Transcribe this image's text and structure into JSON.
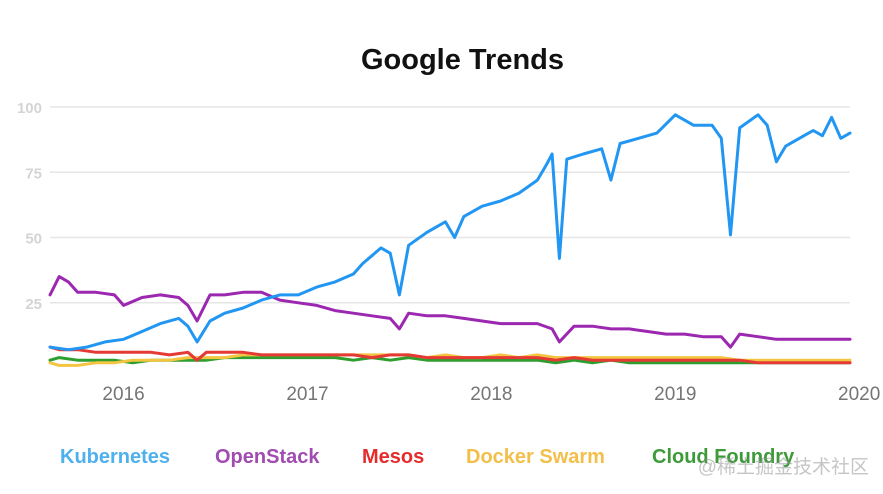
{
  "chart_data": {
    "type": "line",
    "title": "Google Trends",
    "xlabel": "",
    "ylabel": "",
    "ylim": [
      0,
      100
    ],
    "yticks": [
      25,
      50,
      75,
      100
    ],
    "xticks": [
      "2016",
      "2017",
      "2018",
      "2019",
      "2020"
    ],
    "x_range": [
      2015.85,
      2020.2
    ],
    "grid": true,
    "legend_position": "bottom",
    "series": [
      {
        "name": "Kubernetes",
        "color": "#2196F3",
        "legend_color": "#4FB0EE",
        "points": [
          [
            2015.85,
            8
          ],
          [
            2015.95,
            7
          ],
          [
            2016.05,
            8
          ],
          [
            2016.15,
            10
          ],
          [
            2016.25,
            11
          ],
          [
            2016.35,
            14
          ],
          [
            2016.45,
            17
          ],
          [
            2016.55,
            19
          ],
          [
            2016.6,
            16
          ],
          [
            2016.65,
            10
          ],
          [
            2016.72,
            18
          ],
          [
            2016.8,
            21
          ],
          [
            2016.9,
            23
          ],
          [
            2017.0,
            26
          ],
          [
            2017.1,
            28
          ],
          [
            2017.2,
            28
          ],
          [
            2017.3,
            31
          ],
          [
            2017.4,
            33
          ],
          [
            2017.5,
            36
          ],
          [
            2017.55,
            40
          ],
          [
            2017.6,
            43
          ],
          [
            2017.65,
            46
          ],
          [
            2017.7,
            44
          ],
          [
            2017.75,
            28
          ],
          [
            2017.8,
            47
          ],
          [
            2017.9,
            52
          ],
          [
            2018.0,
            56
          ],
          [
            2018.05,
            50
          ],
          [
            2018.1,
            58
          ],
          [
            2018.2,
            62
          ],
          [
            2018.3,
            64
          ],
          [
            2018.4,
            67
          ],
          [
            2018.5,
            72
          ],
          [
            2018.55,
            78
          ],
          [
            2018.58,
            82
          ],
          [
            2018.62,
            42
          ],
          [
            2018.66,
            80
          ],
          [
            2018.75,
            82
          ],
          [
            2018.85,
            84
          ],
          [
            2018.9,
            72
          ],
          [
            2018.95,
            86
          ],
          [
            2019.05,
            88
          ],
          [
            2019.15,
            90
          ],
          [
            2019.25,
            97
          ],
          [
            2019.35,
            93
          ],
          [
            2019.45,
            93
          ],
          [
            2019.5,
            88
          ],
          [
            2019.55,
            51
          ],
          [
            2019.6,
            92
          ],
          [
            2019.7,
            97
          ],
          [
            2019.75,
            93
          ],
          [
            2019.8,
            79
          ],
          [
            2019.85,
            85
          ],
          [
            2019.95,
            89
          ],
          [
            2020.0,
            91
          ],
          [
            2020.05,
            89
          ],
          [
            2020.1,
            96
          ],
          [
            2020.15,
            88
          ],
          [
            2020.2,
            90
          ]
        ]
      },
      {
        "name": "OpenStack",
        "color": "#9C27B0",
        "legend_color": "#A04CB0",
        "points": [
          [
            2015.85,
            28
          ],
          [
            2015.9,
            35
          ],
          [
            2015.95,
            33
          ],
          [
            2016.0,
            29
          ],
          [
            2016.1,
            29
          ],
          [
            2016.2,
            28
          ],
          [
            2016.25,
            24
          ],
          [
            2016.35,
            27
          ],
          [
            2016.45,
            28
          ],
          [
            2016.55,
            27
          ],
          [
            2016.6,
            24
          ],
          [
            2016.65,
            18
          ],
          [
            2016.72,
            28
          ],
          [
            2016.8,
            28
          ],
          [
            2016.9,
            29
          ],
          [
            2017.0,
            29
          ],
          [
            2017.1,
            26
          ],
          [
            2017.2,
            25
          ],
          [
            2017.3,
            24
          ],
          [
            2017.4,
            22
          ],
          [
            2017.5,
            21
          ],
          [
            2017.6,
            20
          ],
          [
            2017.7,
            19
          ],
          [
            2017.75,
            15
          ],
          [
            2017.8,
            21
          ],
          [
            2017.9,
            20
          ],
          [
            2018.0,
            20
          ],
          [
            2018.1,
            19
          ],
          [
            2018.2,
            18
          ],
          [
            2018.3,
            17
          ],
          [
            2018.4,
            17
          ],
          [
            2018.5,
            17
          ],
          [
            2018.58,
            15
          ],
          [
            2018.62,
            10
          ],
          [
            2018.7,
            16
          ],
          [
            2018.8,
            16
          ],
          [
            2018.9,
            15
          ],
          [
            2019.0,
            15
          ],
          [
            2019.1,
            14
          ],
          [
            2019.2,
            13
          ],
          [
            2019.3,
            13
          ],
          [
            2019.4,
            12
          ],
          [
            2019.5,
            12
          ],
          [
            2019.55,
            8
          ],
          [
            2019.6,
            13
          ],
          [
            2019.7,
            12
          ],
          [
            2019.8,
            11
          ],
          [
            2019.9,
            11
          ],
          [
            2020.0,
            11
          ],
          [
            2020.1,
            11
          ],
          [
            2020.15,
            11
          ],
          [
            2020.2,
            11
          ]
        ]
      },
      {
        "name": "Mesos",
        "color": "#E53935",
        "legend_color": "#E52B2B",
        "points": [
          [
            2015.85,
            8
          ],
          [
            2015.9,
            7
          ],
          [
            2016.0,
            7
          ],
          [
            2016.1,
            6
          ],
          [
            2016.2,
            6
          ],
          [
            2016.3,
            6
          ],
          [
            2016.4,
            6
          ],
          [
            2016.5,
            5
          ],
          [
            2016.6,
            6
          ],
          [
            2016.65,
            3
          ],
          [
            2016.7,
            6
          ],
          [
            2016.8,
            6
          ],
          [
            2016.9,
            6
          ],
          [
            2017.0,
            5
          ],
          [
            2017.1,
            5
          ],
          [
            2017.2,
            5
          ],
          [
            2017.3,
            5
          ],
          [
            2017.4,
            5
          ],
          [
            2017.5,
            5
          ],
          [
            2017.6,
            4
          ],
          [
            2017.7,
            5
          ],
          [
            2017.8,
            5
          ],
          [
            2017.9,
            4
          ],
          [
            2018.0,
            4
          ],
          [
            2018.1,
            4
          ],
          [
            2018.2,
            4
          ],
          [
            2018.3,
            4
          ],
          [
            2018.4,
            4
          ],
          [
            2018.5,
            4
          ],
          [
            2018.6,
            3
          ],
          [
            2018.7,
            4
          ],
          [
            2018.8,
            3
          ],
          [
            2018.9,
            3
          ],
          [
            2019.0,
            3
          ],
          [
            2019.1,
            3
          ],
          [
            2019.2,
            3
          ],
          [
            2019.3,
            3
          ],
          [
            2019.4,
            3
          ],
          [
            2019.5,
            3
          ],
          [
            2019.6,
            3
          ],
          [
            2019.7,
            2
          ],
          [
            2019.8,
            2
          ],
          [
            2019.9,
            2
          ],
          [
            2020.0,
            2
          ],
          [
            2020.1,
            2
          ],
          [
            2020.2,
            2
          ]
        ]
      },
      {
        "name": "Docker Swarm",
        "color": "#F4C542",
        "legend_color": "#F2BF4B",
        "points": [
          [
            2015.85,
            2
          ],
          [
            2015.9,
            1
          ],
          [
            2016.0,
            1
          ],
          [
            2016.1,
            2
          ],
          [
            2016.2,
            2
          ],
          [
            2016.3,
            3
          ],
          [
            2016.4,
            3
          ],
          [
            2016.5,
            3
          ],
          [
            2016.6,
            4
          ],
          [
            2016.7,
            4
          ],
          [
            2016.8,
            4
          ],
          [
            2016.9,
            5
          ],
          [
            2017.0,
            5
          ],
          [
            2017.1,
            5
          ],
          [
            2017.2,
            5
          ],
          [
            2017.3,
            5
          ],
          [
            2017.4,
            5
          ],
          [
            2017.5,
            5
          ],
          [
            2017.6,
            5
          ],
          [
            2017.7,
            5
          ],
          [
            2017.8,
            5
          ],
          [
            2017.9,
            4
          ],
          [
            2018.0,
            5
          ],
          [
            2018.1,
            4
          ],
          [
            2018.2,
            4
          ],
          [
            2018.3,
            5
          ],
          [
            2018.4,
            4
          ],
          [
            2018.5,
            5
          ],
          [
            2018.6,
            4
          ],
          [
            2018.7,
            4
          ],
          [
            2018.8,
            4
          ],
          [
            2018.9,
            4
          ],
          [
            2019.0,
            4
          ],
          [
            2019.1,
            4
          ],
          [
            2019.2,
            4
          ],
          [
            2019.3,
            4
          ],
          [
            2019.4,
            4
          ],
          [
            2019.5,
            4
          ],
          [
            2019.6,
            3
          ],
          [
            2019.7,
            3
          ],
          [
            2019.8,
            3
          ],
          [
            2019.9,
            3
          ],
          [
            2020.0,
            3
          ],
          [
            2020.1,
            3
          ],
          [
            2020.2,
            3
          ]
        ]
      },
      {
        "name": "Cloud Foundry",
        "color": "#2E9E2E",
        "legend_color": "#3D9A39",
        "points": [
          [
            2015.85,
            3
          ],
          [
            2015.9,
            4
          ],
          [
            2016.0,
            3
          ],
          [
            2016.1,
            3
          ],
          [
            2016.2,
            3
          ],
          [
            2016.3,
            2
          ],
          [
            2016.4,
            3
          ],
          [
            2016.5,
            3
          ],
          [
            2016.6,
            3
          ],
          [
            2016.7,
            3
          ],
          [
            2016.8,
            4
          ],
          [
            2016.9,
            4
          ],
          [
            2017.0,
            4
          ],
          [
            2017.1,
            4
          ],
          [
            2017.2,
            4
          ],
          [
            2017.3,
            4
          ],
          [
            2017.4,
            4
          ],
          [
            2017.5,
            3
          ],
          [
            2017.6,
            4
          ],
          [
            2017.7,
            3
          ],
          [
            2017.8,
            4
          ],
          [
            2017.9,
            3
          ],
          [
            2018.0,
            3
          ],
          [
            2018.1,
            3
          ],
          [
            2018.2,
            3
          ],
          [
            2018.3,
            3
          ],
          [
            2018.4,
            3
          ],
          [
            2018.5,
            3
          ],
          [
            2018.6,
            2
          ],
          [
            2018.7,
            3
          ],
          [
            2018.8,
            2
          ],
          [
            2018.9,
            3
          ],
          [
            2019.0,
            2
          ],
          [
            2019.1,
            2
          ],
          [
            2019.2,
            2
          ],
          [
            2019.3,
            2
          ],
          [
            2019.4,
            2
          ],
          [
            2019.5,
            2
          ],
          [
            2019.6,
            2
          ],
          [
            2019.7,
            2
          ],
          [
            2019.8,
            2
          ],
          [
            2019.9,
            2
          ],
          [
            2020.0,
            2
          ],
          [
            2020.1,
            2
          ],
          [
            2020.2,
            2
          ]
        ]
      }
    ]
  },
  "watermark": "@稀土掘金技术社区"
}
